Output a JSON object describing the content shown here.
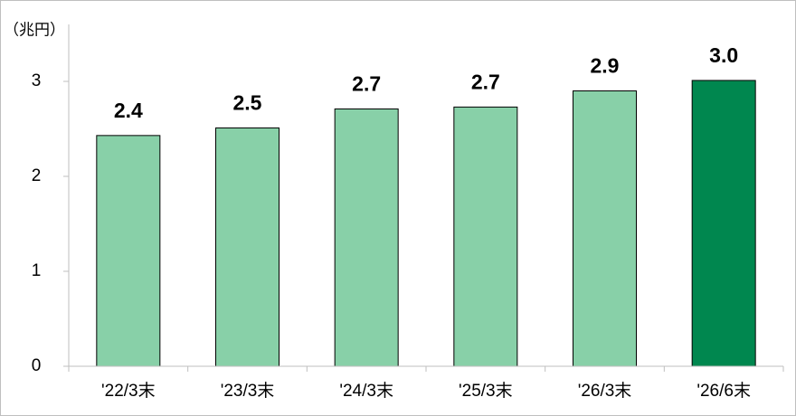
{
  "chart_data": {
    "type": "bar",
    "unit_label": "（兆円）",
    "categories": [
      "'22/3末",
      "'23/3末",
      "'24/3末",
      "'25/3末",
      "'26/3末",
      "'26/6末"
    ],
    "values": [
      2.43,
      2.51,
      2.71,
      2.73,
      2.9,
      3.01
    ],
    "value_labels": [
      "2.4",
      "2.5",
      "2.7",
      "2.7",
      "2.9",
      "3.0"
    ],
    "colors": [
      "#88d0a8",
      "#88d0a8",
      "#88d0a8",
      "#88d0a8",
      "#88d0a8",
      "#00874f"
    ],
    "ylim": [
      0,
      3.6
    ],
    "yticks": [
      0,
      1,
      2,
      3
    ],
    "grid": false
  }
}
